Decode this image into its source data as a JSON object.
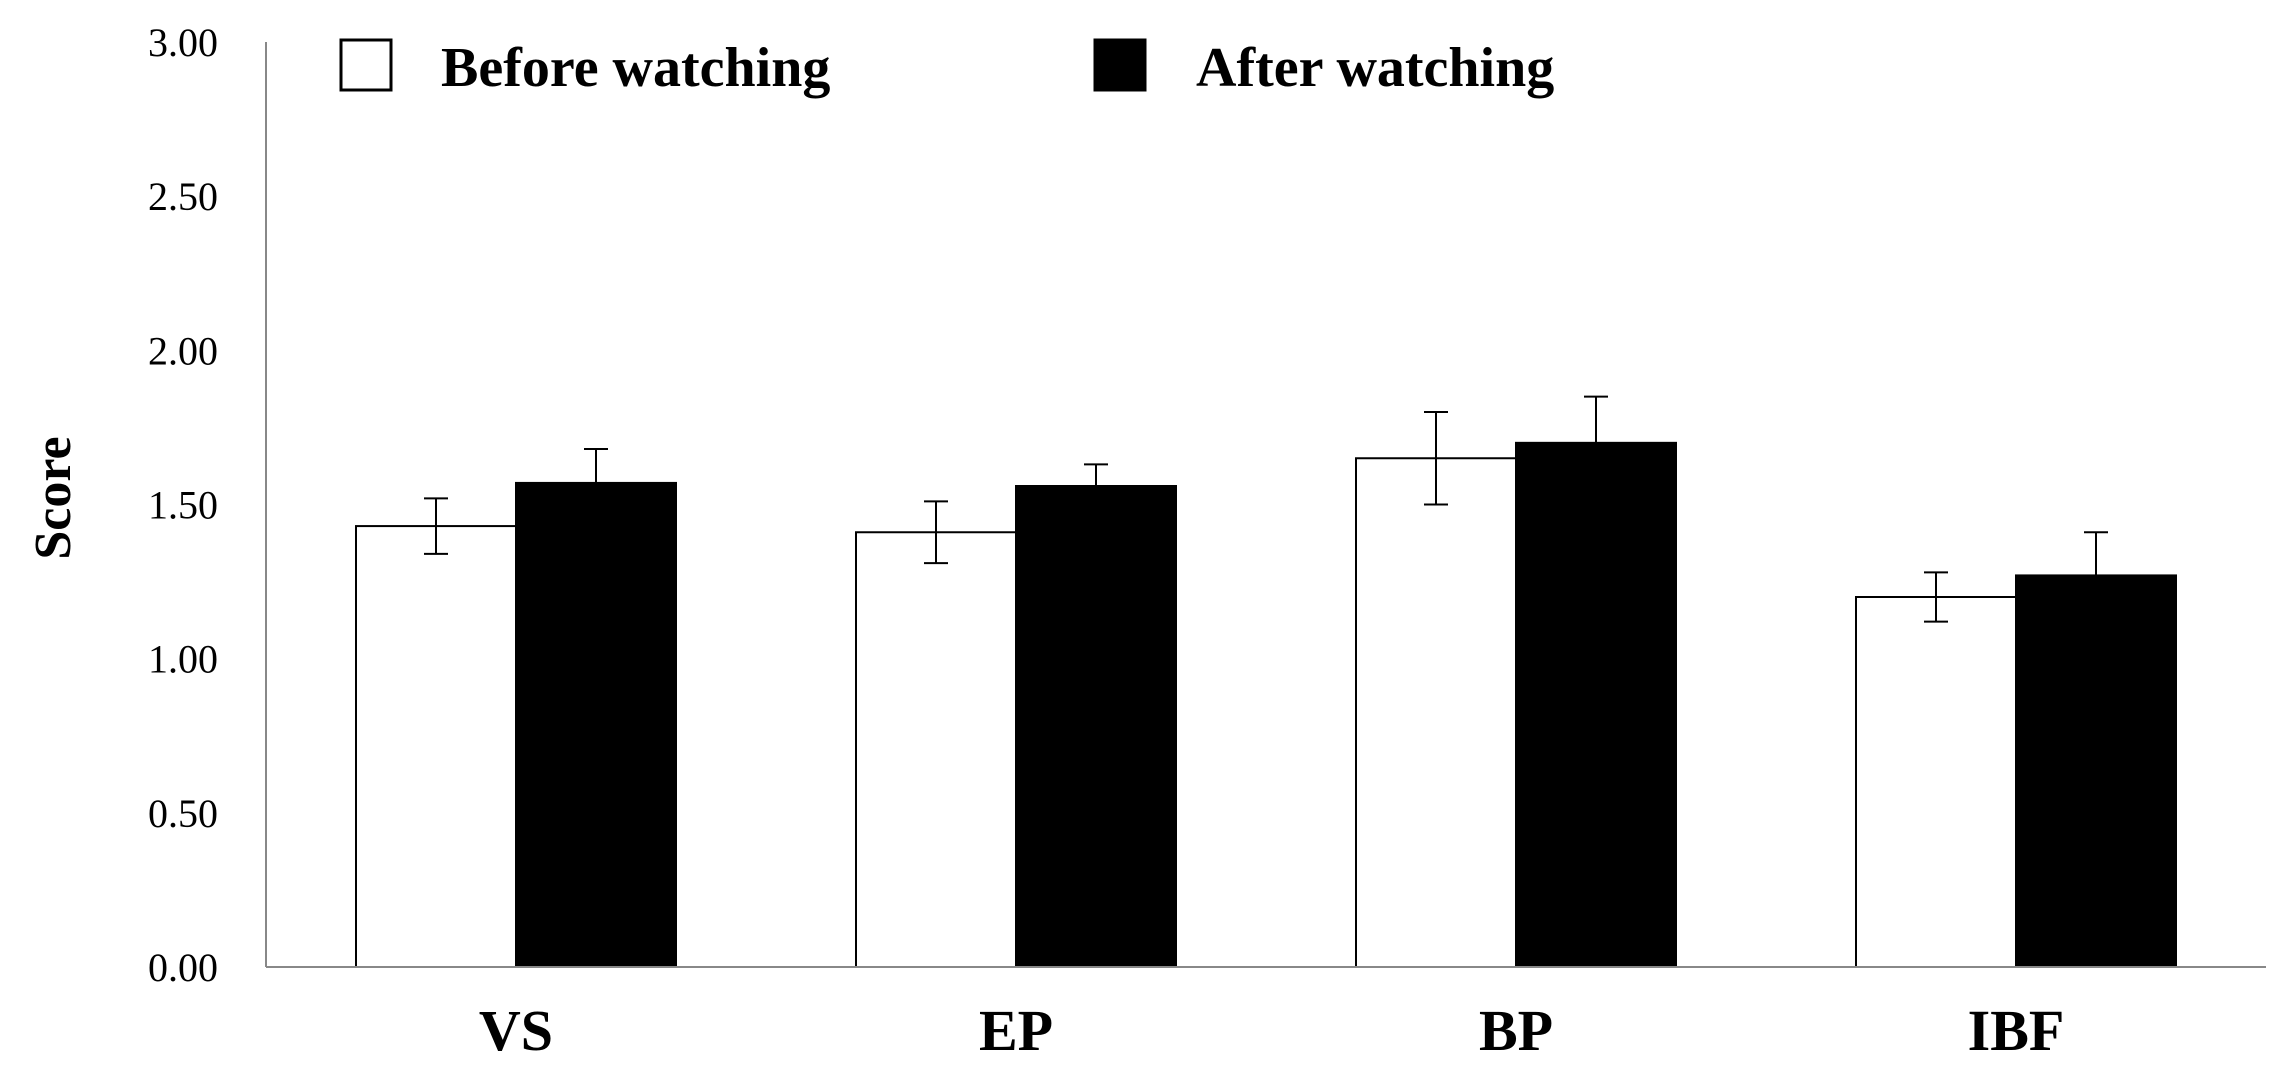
{
  "chart_data": {
    "type": "bar",
    "title": "",
    "xlabel": "",
    "ylabel": "Score",
    "ylim": [
      0,
      3
    ],
    "ytick_values": [
      0,
      0.5,
      1,
      1.5,
      2,
      2.5,
      3
    ],
    "ytick_labels": [
      "0.00",
      "0.50",
      "1.00",
      "1.50",
      "2.00",
      "2.50",
      "3.00"
    ],
    "categories": [
      "VS",
      "EP",
      "BP",
      "IBF"
    ],
    "grid": false,
    "legend_position": "top",
    "series": [
      {
        "name": "Before watching",
        "color": "#ffffff",
        "edge_color": "#000000",
        "values": [
          1.43,
          1.41,
          1.65,
          1.2
        ],
        "errors": [
          0.09,
          0.1,
          0.15,
          0.08
        ]
      },
      {
        "name": "After watching",
        "color": "#000000",
        "edge_color": "#000000",
        "values": [
          1.57,
          1.56,
          1.7,
          1.27
        ],
        "errors": [
          0.11,
          0.07,
          0.15,
          0.14
        ]
      }
    ]
  }
}
